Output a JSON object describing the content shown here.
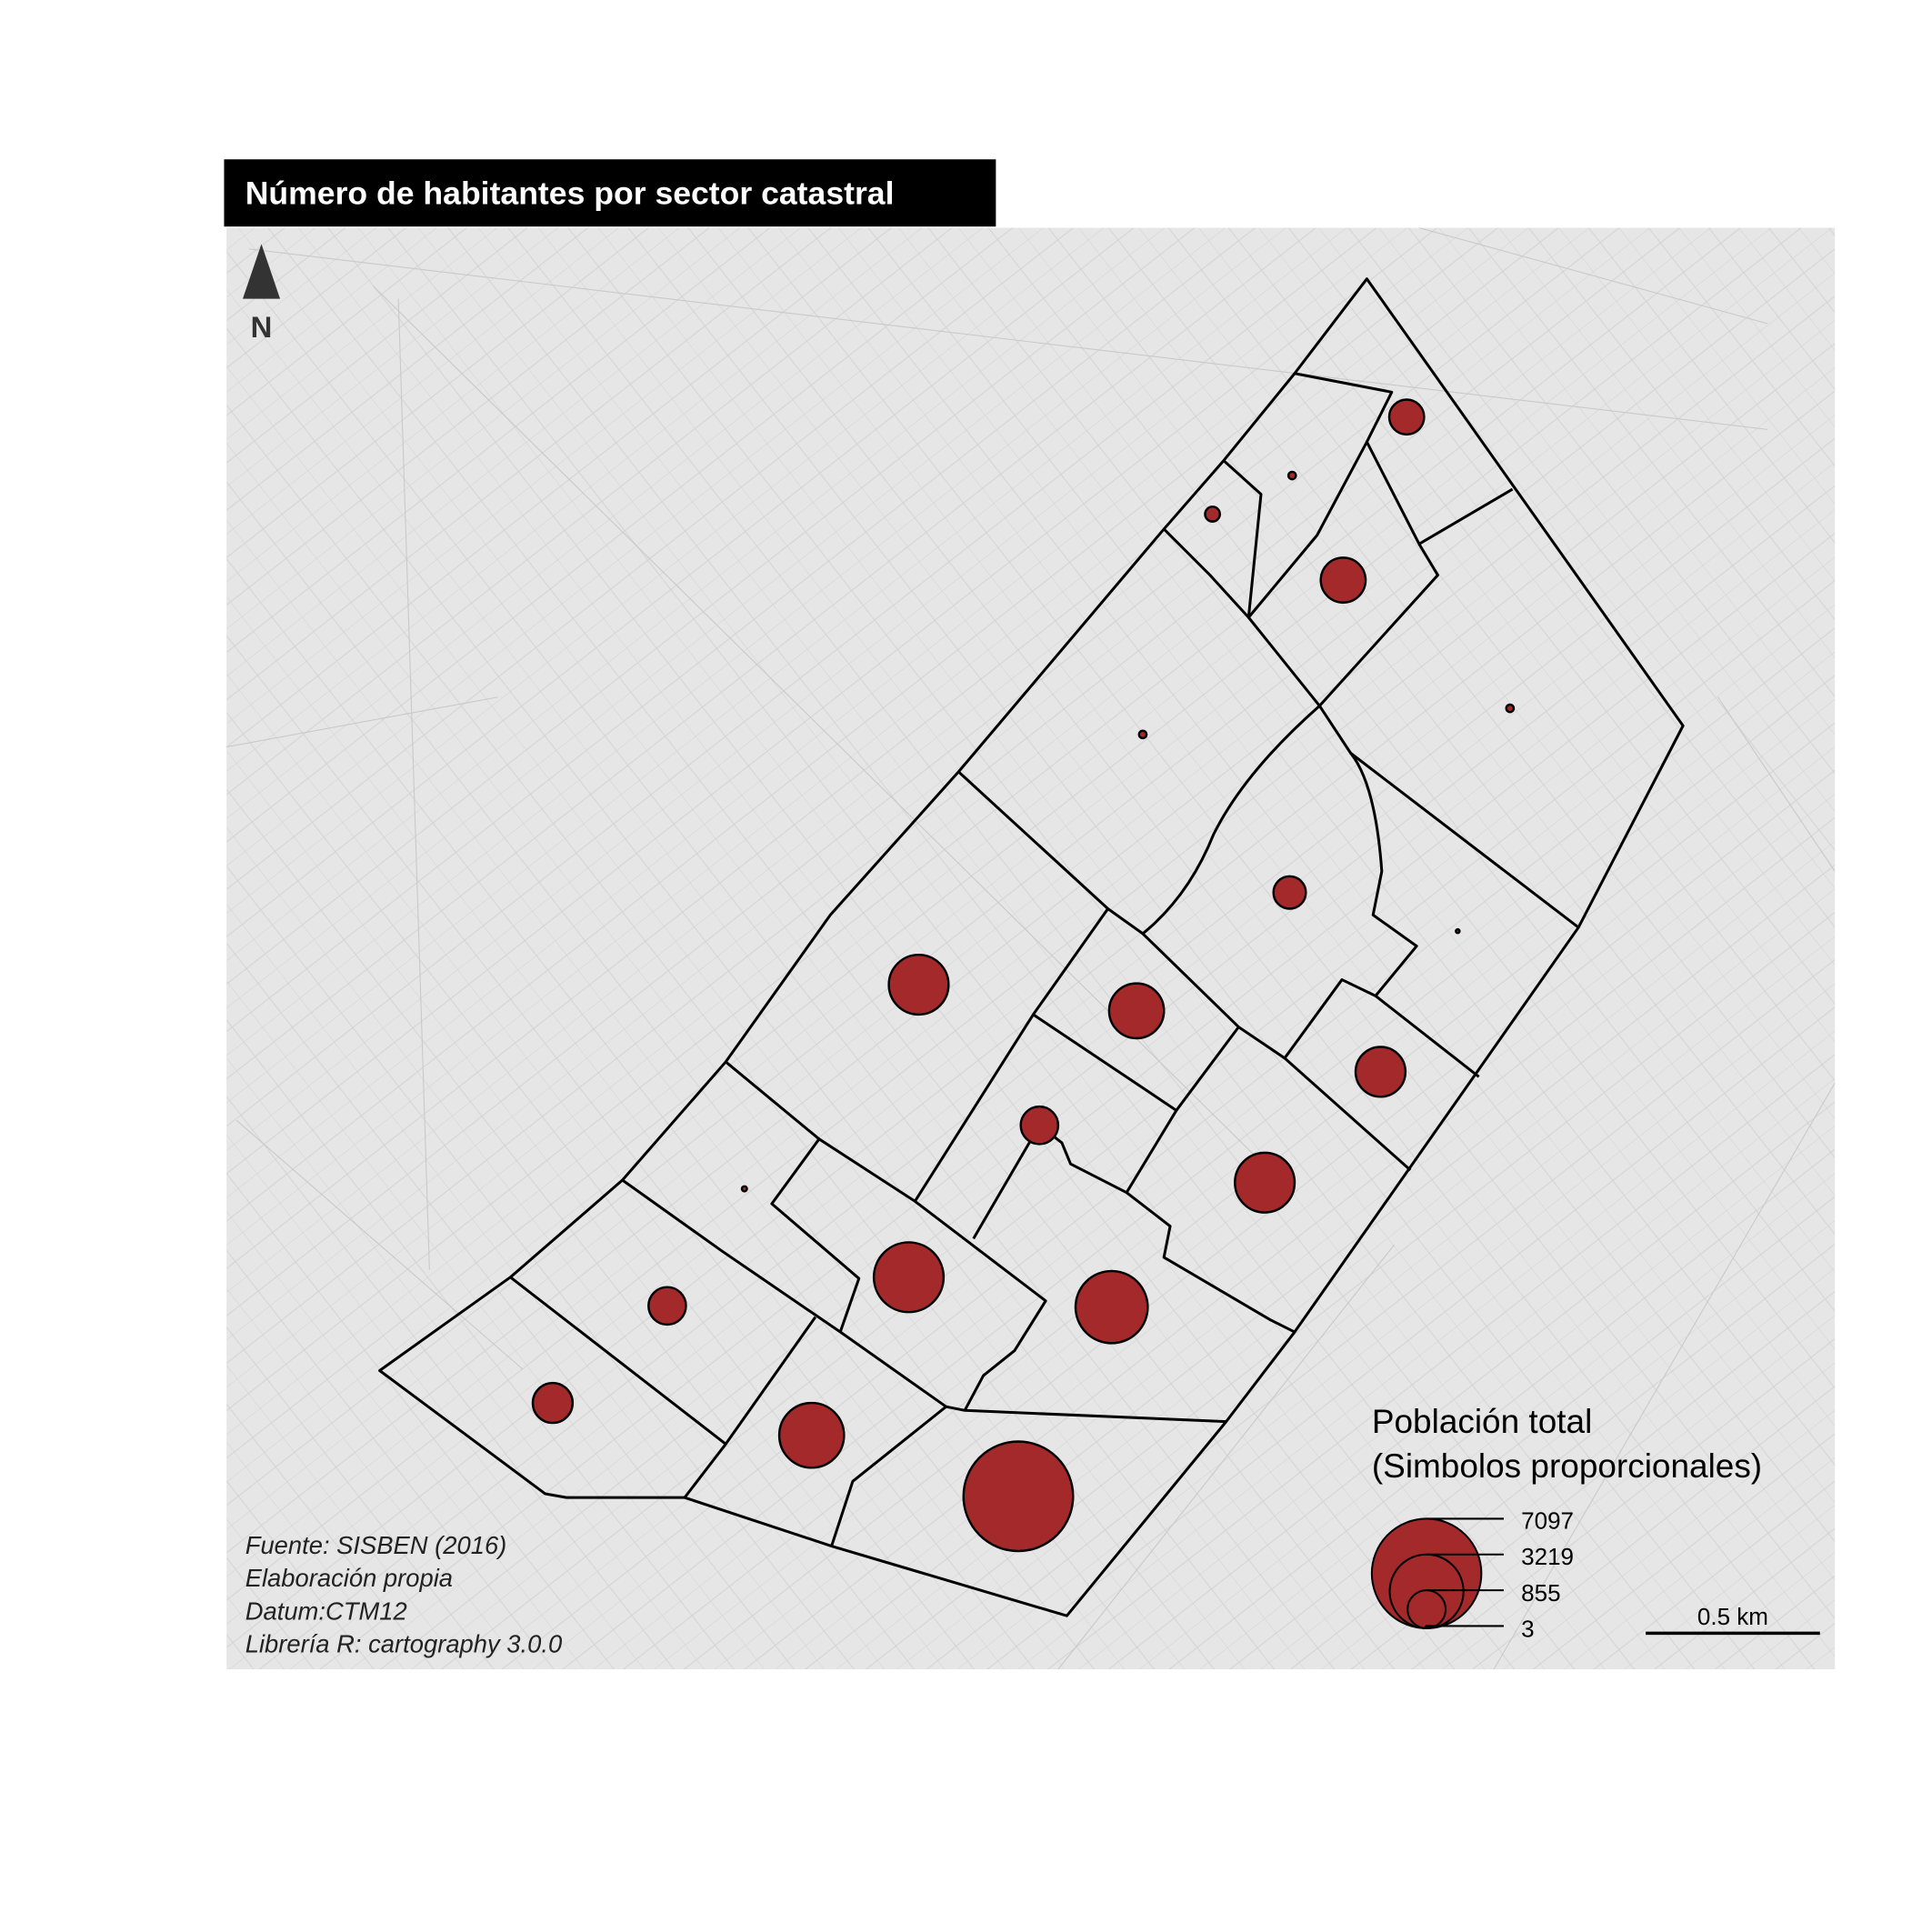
{
  "title": "Número de habitantes por sector catastral",
  "north": "N",
  "legend": {
    "title": [
      "Población total",
      "(Simbolos proporcionales)"
    ],
    "values": [
      7097,
      3219,
      855,
      3
    ]
  },
  "sectors": {
    "population": [
      720,
      33,
      130,
      1190,
      33,
      33,
      620,
      8,
      2110,
      1780,
      1470,
      830,
      2110,
      15,
      2880,
      3080,
      830,
      940,
      2480,
      7097
    ]
  },
  "scale_bar": "0.5 km",
  "notes": [
    "Fuente: SISBEN (2016)",
    "Elaboración propia",
    "Datum:CTM12",
    "Librería R: cartography 3.0.0"
  ]
}
